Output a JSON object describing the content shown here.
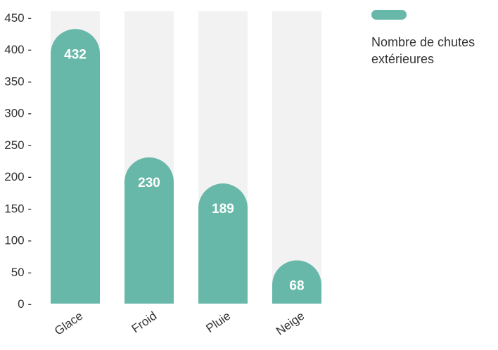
{
  "chart_data": {
    "type": "bar",
    "categories": [
      "Glace",
      "Froid",
      "Pluie",
      "Neige"
    ],
    "series": [
      {
        "name": "Nombre de chutes extérieures",
        "values": [
          432,
          230,
          189,
          68
        ]
      }
    ],
    "y_ticks": [
      "0",
      "50",
      "100",
      "150",
      "200",
      "250",
      "300",
      "350",
      "400",
      "450"
    ],
    "ylim": [
      0,
      450
    ],
    "grid": false,
    "legend_position": "top-right",
    "colors": {
      "bar": "#67b8a9",
      "track": "#f2f2f2",
      "value_label": "#ffffff",
      "axis_text": "#333333"
    }
  }
}
